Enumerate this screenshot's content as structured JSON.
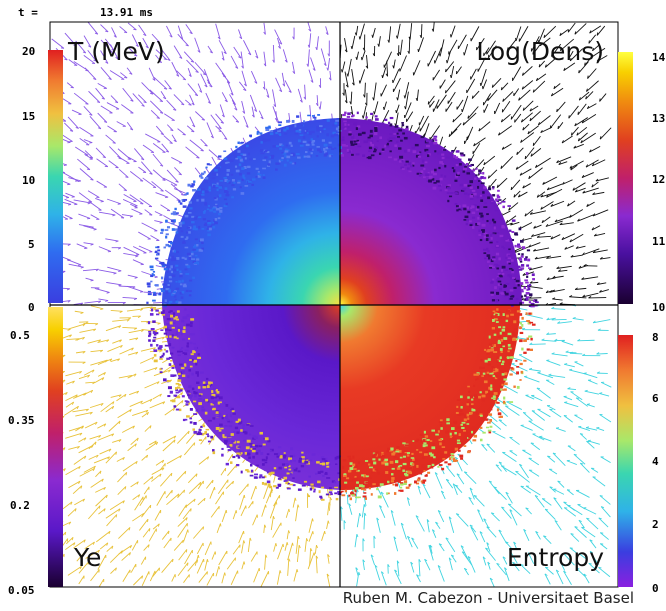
{
  "time": {
    "label": "t =",
    "value": "13.91 ms"
  },
  "panels": {
    "temperature": {
      "label": "T (MeV)",
      "ticks": [
        "20",
        "15",
        "10",
        "5",
        "0"
      ],
      "range": [
        0,
        20
      ]
    },
    "density": {
      "label": "Log(Dens)",
      "ticks": [
        "14",
        "13",
        "12",
        "11",
        "10"
      ],
      "range": [
        10,
        14
      ]
    },
    "ye": {
      "label": "Ye",
      "ticks": [
        "0.5",
        "0.35",
        "0.2",
        "0.05"
      ],
      "range": [
        0.05,
        0.5
      ]
    },
    "entropy": {
      "label": "Entropy",
      "ticks": [
        "8",
        "6",
        "4",
        "2",
        "0"
      ],
      "range": [
        0,
        8
      ]
    }
  },
  "colors": {
    "temperature_scale": [
      "#3a3ee0",
      "#2f6cf0",
      "#2fb2e8",
      "#3ad6b0",
      "#a8e86a",
      "#f0c040",
      "#f07a30",
      "#e02020"
    ],
    "density_scale": [
      "#1a0030",
      "#4a10a0",
      "#8a2ad0",
      "#c0206a",
      "#e04020",
      "#f08a10",
      "#f8d000",
      "#ffff40"
    ],
    "ye_scale": [
      "#1a0030",
      "#5a18c8",
      "#8a2ad0",
      "#c0206a",
      "#e04020",
      "#f08a10",
      "#f8d000",
      "#ffe060"
    ],
    "entropy_scale": [
      "#8a20e0",
      "#3a3ee0",
      "#2fb2e8",
      "#3ad6b0",
      "#a8e86a",
      "#f0c040",
      "#f07a30",
      "#e02020"
    ],
    "arrows_temperature": "#8a5ae6",
    "arrows_density": "#111111",
    "arrows_ye": "#e8c23a",
    "arrows_entropy": "#40d4e0"
  },
  "credit": "Ruben M. Cabezon - Universitaet Basel"
}
